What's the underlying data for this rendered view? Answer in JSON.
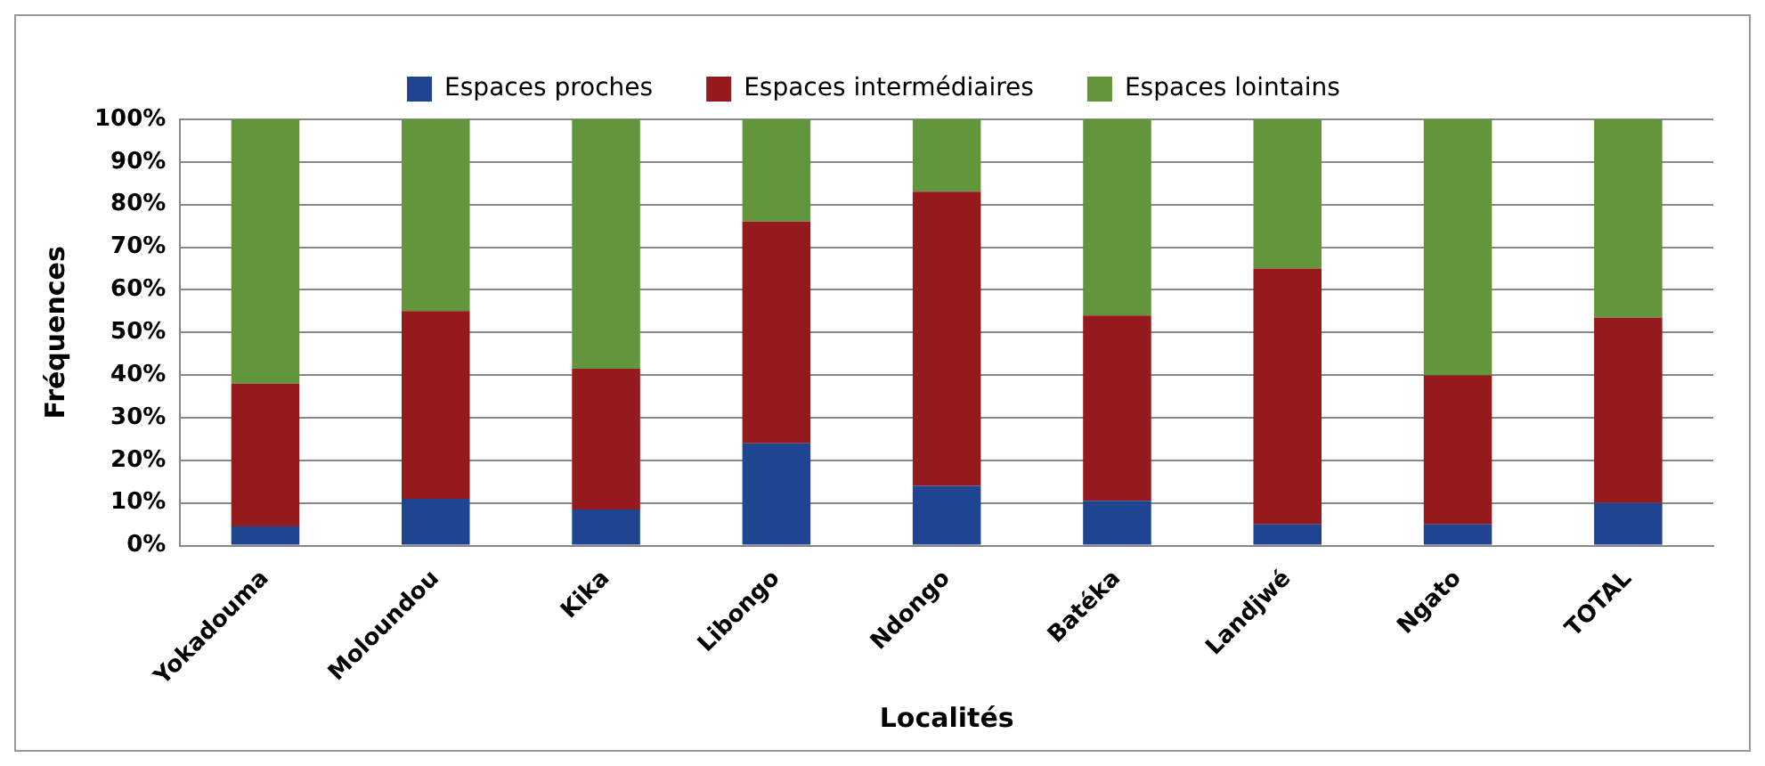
{
  "chart_data": {
    "type": "bar",
    "xlabel": "Localités",
    "ylabel": "Fréquences",
    "stacked": true,
    "legend": "top",
    "grid": "y",
    "categories": [
      "Yokadouma",
      "Moloundou",
      "Kika",
      "Libongo",
      "Ndongo",
      "Batéka",
      "Landjwé",
      "Ngato",
      "TOTAL"
    ],
    "ylim": [
      0,
      100
    ],
    "yticks": [
      {
        "value": 0,
        "label": "0%"
      },
      {
        "value": 10,
        "label": "10%"
      },
      {
        "value": 20,
        "label": "20%"
      },
      {
        "value": 30,
        "label": "30%"
      },
      {
        "value": 40,
        "label": "40%"
      },
      {
        "value": 50,
        "label": "50%"
      },
      {
        "value": 60,
        "label": "60%"
      },
      {
        "value": 70,
        "label": "70%"
      },
      {
        "value": 80,
        "label": "80%"
      },
      {
        "value": 90,
        "label": "90%"
      },
      {
        "value": 100,
        "label": "100%"
      }
    ],
    "series": [
      {
        "name": "Espaces proches",
        "color": "#1f4491",
        "values": [
          4.5,
          11,
          8.5,
          24,
          14,
          10.5,
          5,
          5,
          10
        ]
      },
      {
        "name": "Espaces intermédiaires",
        "color": "#951a1d",
        "values": [
          33.5,
          44,
          33,
          52,
          69,
          43.5,
          60,
          35,
          43.5
        ]
      },
      {
        "name": "Espaces lointains",
        "color": "#63953c",
        "values": [
          62,
          45,
          58.5,
          24,
          17,
          46,
          35,
          60,
          46.5
        ]
      }
    ]
  }
}
